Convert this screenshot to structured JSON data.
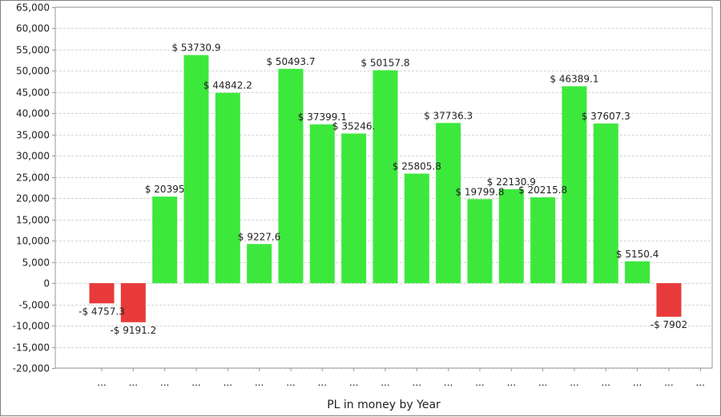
{
  "chart_data": {
    "type": "bar",
    "title": "",
    "xlabel": "PL in money by Year",
    "ylabel": "",
    "ylim": [
      -20000,
      65000
    ],
    "ytick_step": 5000,
    "ytick_labels": [
      "65,000",
      "60,000",
      "55,000",
      "50,000",
      "45,000",
      "40,000",
      "35,000",
      "30,000",
      "25,000",
      "20,000",
      "15,000",
      "10,000",
      "5,000",
      "0",
      "-5,000",
      "-10,000",
      "-15,000",
      "-20,000"
    ],
    "grid": true,
    "legend": "none",
    "categories": [
      "...",
      "...",
      "...",
      "...",
      "...",
      "...",
      "...",
      "...",
      "...",
      "...",
      "...",
      "...",
      "...",
      "...",
      "...",
      "...",
      "...",
      "...",
      "...",
      "..."
    ],
    "values": [
      -4757.3,
      -9191.2,
      20395,
      53730.9,
      44842.2,
      9227.6,
      50493.7,
      37399.1,
      35246,
      50157.8,
      25805.8,
      37736.3,
      19799.8,
      22130.9,
      20215.8,
      46389.1,
      37607.3,
      5150.4,
      -7902,
      0
    ],
    "data_labels": [
      "-$ 4757.3",
      "-$ 9191.2",
      "$ 20395",
      "$ 53730.9",
      "$ 44842.2",
      "$ 9227.6",
      "$ 50493.7",
      "$ 37399.1",
      "$ 35246.",
      "$ 50157.8",
      "$ 25805.8",
      "$ 37736.3",
      "$ 19799.8",
      "$ 22130.9",
      "$ 20215.8",
      "$ 46389.1",
      "$ 37607.3",
      "$ 5150.4",
      "-$ 7902",
      ""
    ],
    "colors": {
      "positive": "#3de83d",
      "negative": "#e83a3a",
      "grid": "#d6d6d6",
      "axis": "#9a9a9a",
      "text": "#222222"
    }
  }
}
